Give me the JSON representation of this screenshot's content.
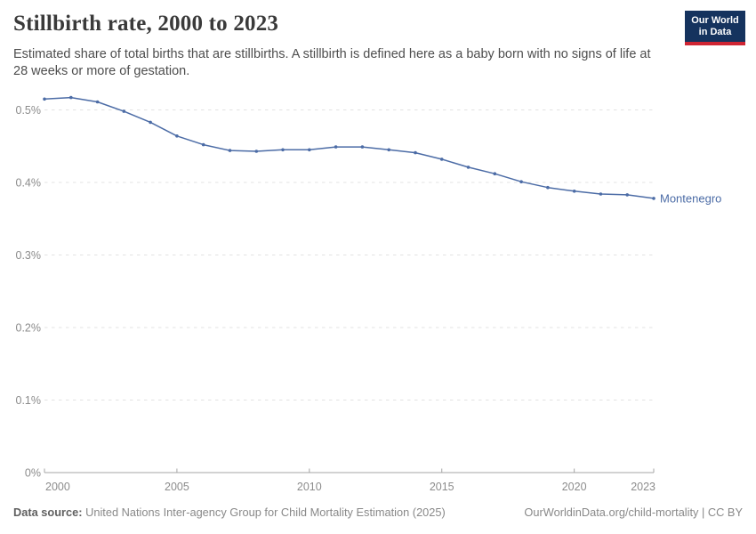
{
  "header": {
    "title": "Stillbirth rate, 2000 to 2023",
    "subtitle": "Estimated share of total births that are stillbirths. A stillbirth is defined here as a baby born with no signs of life at 28 weeks or more of gestation.",
    "logo": {
      "line1": "Our World",
      "line2": "in Data"
    },
    "logo_colors": {
      "background": "#15335e",
      "underline": "#cf2533"
    }
  },
  "chart_data": {
    "type": "line",
    "title": "Stillbirth rate, 2000 to 2023",
    "unit": "%",
    "x": [
      2000,
      2001,
      2002,
      2003,
      2004,
      2005,
      2006,
      2007,
      2008,
      2009,
      2010,
      2011,
      2012,
      2013,
      2014,
      2015,
      2016,
      2017,
      2018,
      2019,
      2020,
      2021,
      2022,
      2023
    ],
    "series": [
      {
        "name": "Montenegro",
        "color": "#4c6ca6",
        "values": [
          0.515,
          0.517,
          0.511,
          0.498,
          0.483,
          0.464,
          0.452,
          0.444,
          0.443,
          0.445,
          0.445,
          0.449,
          0.449,
          0.445,
          0.441,
          0.432,
          0.421,
          0.412,
          0.401,
          0.393,
          0.388,
          0.384,
          0.383,
          0.378
        ]
      }
    ],
    "xlim": [
      2000,
      2023
    ],
    "ylim": [
      0,
      0.52
    ],
    "x_ticks": [
      2000,
      2005,
      2010,
      2015,
      2020,
      2023
    ],
    "y_ticks": [
      0,
      0.1,
      0.2,
      0.3,
      0.4,
      0.5
    ],
    "y_tick_labels": [
      "0%",
      "0.1%",
      "0.2%",
      "0.3%",
      "0.4%",
      "0.5%"
    ],
    "grid": "horizontal-dashed",
    "legend_position": "end-of-line",
    "colors": {
      "gridline": "#e3e3e3",
      "axis": "#a5a5a5",
      "tick_label": "#8c8c8c"
    }
  },
  "footer": {
    "datasource_label": "Data source:",
    "datasource": "United Nations Inter-agency Group for Child Mortality Estimation (2025)",
    "link": "OurWorldinData.org/child-mortality | CC BY"
  }
}
